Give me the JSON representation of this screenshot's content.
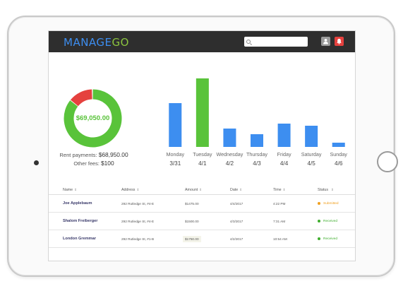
{
  "app": {
    "logo_part1": "MANAGE",
    "logo_part2": "GO",
    "search_placeholder": "",
    "colors": {
      "appbar": "#2e2e2e",
      "blue": "#3d8ef0",
      "green": "#59c33a",
      "red": "#e5413e",
      "orange": "#f0a020"
    }
  },
  "summary": {
    "total": "$69,050.00",
    "rent_label": "Rent payments:",
    "rent_value": "$68,950.00",
    "fees_label": "Other fees:",
    "fees_value": "$100",
    "donut": {
      "rent_fraction": 0.86,
      "fees_fraction": 0.14
    }
  },
  "chart_data": {
    "type": "bar",
    "categories": [
      "Monday",
      "Tuesday",
      "Wednesday",
      "Thursday",
      "Friday",
      "Saturday",
      "Sunday"
    ],
    "dates": [
      "3/31",
      "4/1",
      "4/2",
      "4/3",
      "4/4",
      "4/5",
      "4/6"
    ],
    "values": [
      62,
      97,
      26,
      18,
      33,
      30,
      6
    ],
    "colors": [
      "#3d8ef0",
      "#59c33a",
      "#3d8ef0",
      "#3d8ef0",
      "#3d8ef0",
      "#3d8ef0",
      "#3d8ef0"
    ],
    "ylim": [
      0,
      100
    ],
    "grid": false,
    "title": "",
    "xlabel": "",
    "ylabel": ""
  },
  "table": {
    "headers": [
      "Name",
      "Address",
      "Amount",
      "Date",
      "Time",
      "Status"
    ],
    "rows": [
      {
        "name": "Joe Applebaum",
        "address": "292 Rutledge St, #4-E",
        "amount": "$1475.00",
        "date": "4/4/2017",
        "time": "4:22 PM",
        "status": "Submitted",
        "status_color": "#f0a020"
      },
      {
        "name": "Shalom Freiberger",
        "address": "292 Rutledge St, #4-E",
        "amount": "$1500.00",
        "date": "4/3/2017",
        "time": "7:31 AM",
        "status": "Received",
        "status_color": "#3fae2e"
      },
      {
        "name": "London Gremmar",
        "address": "292 Rutledge St, #1-B",
        "amount": "$1750.00",
        "date": "4/2/2017",
        "time": "10:54 AM",
        "status": "Received",
        "status_color": "#3fae2e"
      }
    ]
  }
}
